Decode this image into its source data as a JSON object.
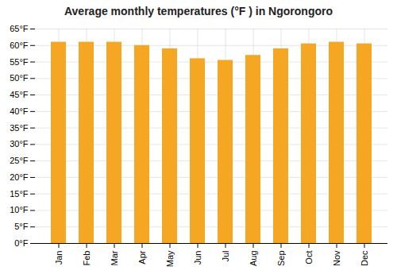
{
  "chart_data": {
    "type": "bar",
    "title": "Average monthly temperatures (°F ) in Ngorongoro",
    "categories": [
      "Jan",
      "Feb",
      "Mar",
      "Apr",
      "May",
      "Jun",
      "Jul",
      "Aug",
      "Sep",
      "Oct",
      "Nov",
      "Dec"
    ],
    "values": [
      61,
      61,
      61,
      60,
      59,
      56,
      55.5,
      57,
      59,
      60.5,
      61,
      60.5
    ],
    "color": "#F5A623",
    "ylim": [
      0,
      65
    ],
    "yticks": [
      {
        "value": 0,
        "label": "0°F"
      },
      {
        "value": 5,
        "label": "5°F"
      },
      {
        "value": 10,
        "label": "10°F"
      },
      {
        "value": 15,
        "label": "15°F"
      },
      {
        "value": 20,
        "label": "20°F"
      },
      {
        "value": 25,
        "label": "25°F"
      },
      {
        "value": 30,
        "label": "30°F"
      },
      {
        "value": 35,
        "label": "35°F"
      },
      {
        "value": 40,
        "label": "40°F"
      },
      {
        "value": 45,
        "label": "45°F"
      },
      {
        "value": 50,
        "label": "50°F"
      },
      {
        "value": 55,
        "label": "55°F"
      },
      {
        "value": 60,
        "label": "60°F"
      },
      {
        "value": 65,
        "label": "65°F"
      }
    ],
    "grid": true
  }
}
